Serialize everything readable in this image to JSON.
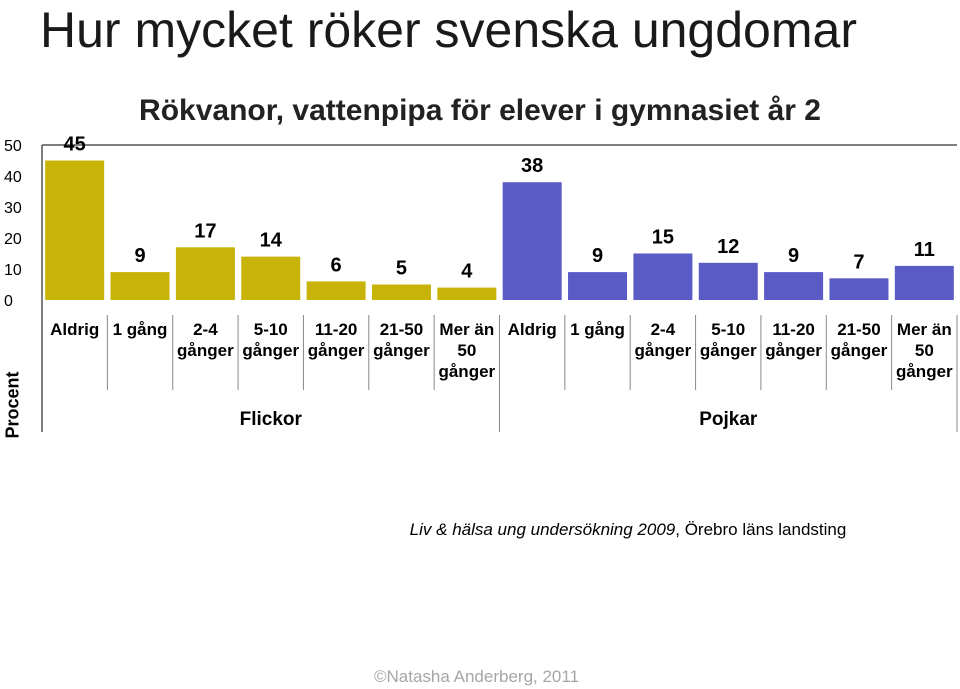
{
  "slide": {
    "title": "Hur mycket röker svenska ungdomar",
    "source_italic": "Liv & hälsa ung undersökning 2009",
    "source_rest": ", Örebro läns landsting",
    "copyright": "©Natasha Anderberg, 2011"
  },
  "chart_data": {
    "type": "bar",
    "title": "Rökvanor, vattenpipa för elever i gymnasiet år 2",
    "ylabel": "Procent",
    "xlabel": "",
    "ylim": [
      0,
      50
    ],
    "yticks": [
      "0",
      "10",
      "20",
      "30",
      "40",
      "50"
    ],
    "grid": false,
    "legend": "none",
    "groups": [
      {
        "name": "Flickor",
        "color": "#c8b408",
        "categories": [
          [
            "Aldrig"
          ],
          [
            "1 gång"
          ],
          [
            "2-4",
            "gånger"
          ],
          [
            "5-10",
            "gånger"
          ],
          [
            "11-20",
            "gånger"
          ],
          [
            "21-50",
            "gånger"
          ],
          [
            "Mer än",
            "50",
            "gånger"
          ]
        ],
        "values": [
          45,
          9,
          17,
          14,
          6,
          5,
          4
        ]
      },
      {
        "name": "Pojkar",
        "color": "#5b5bc6",
        "categories": [
          [
            "Aldrig"
          ],
          [
            "1 gång"
          ],
          [
            "2-4",
            "gånger"
          ],
          [
            "5-10",
            "gånger"
          ],
          [
            "11-20",
            "gånger"
          ],
          [
            "21-50",
            "gånger"
          ],
          [
            "Mer än",
            "50",
            "gånger"
          ]
        ],
        "values": [
          38,
          9,
          15,
          12,
          9,
          7,
          11
        ]
      }
    ]
  }
}
